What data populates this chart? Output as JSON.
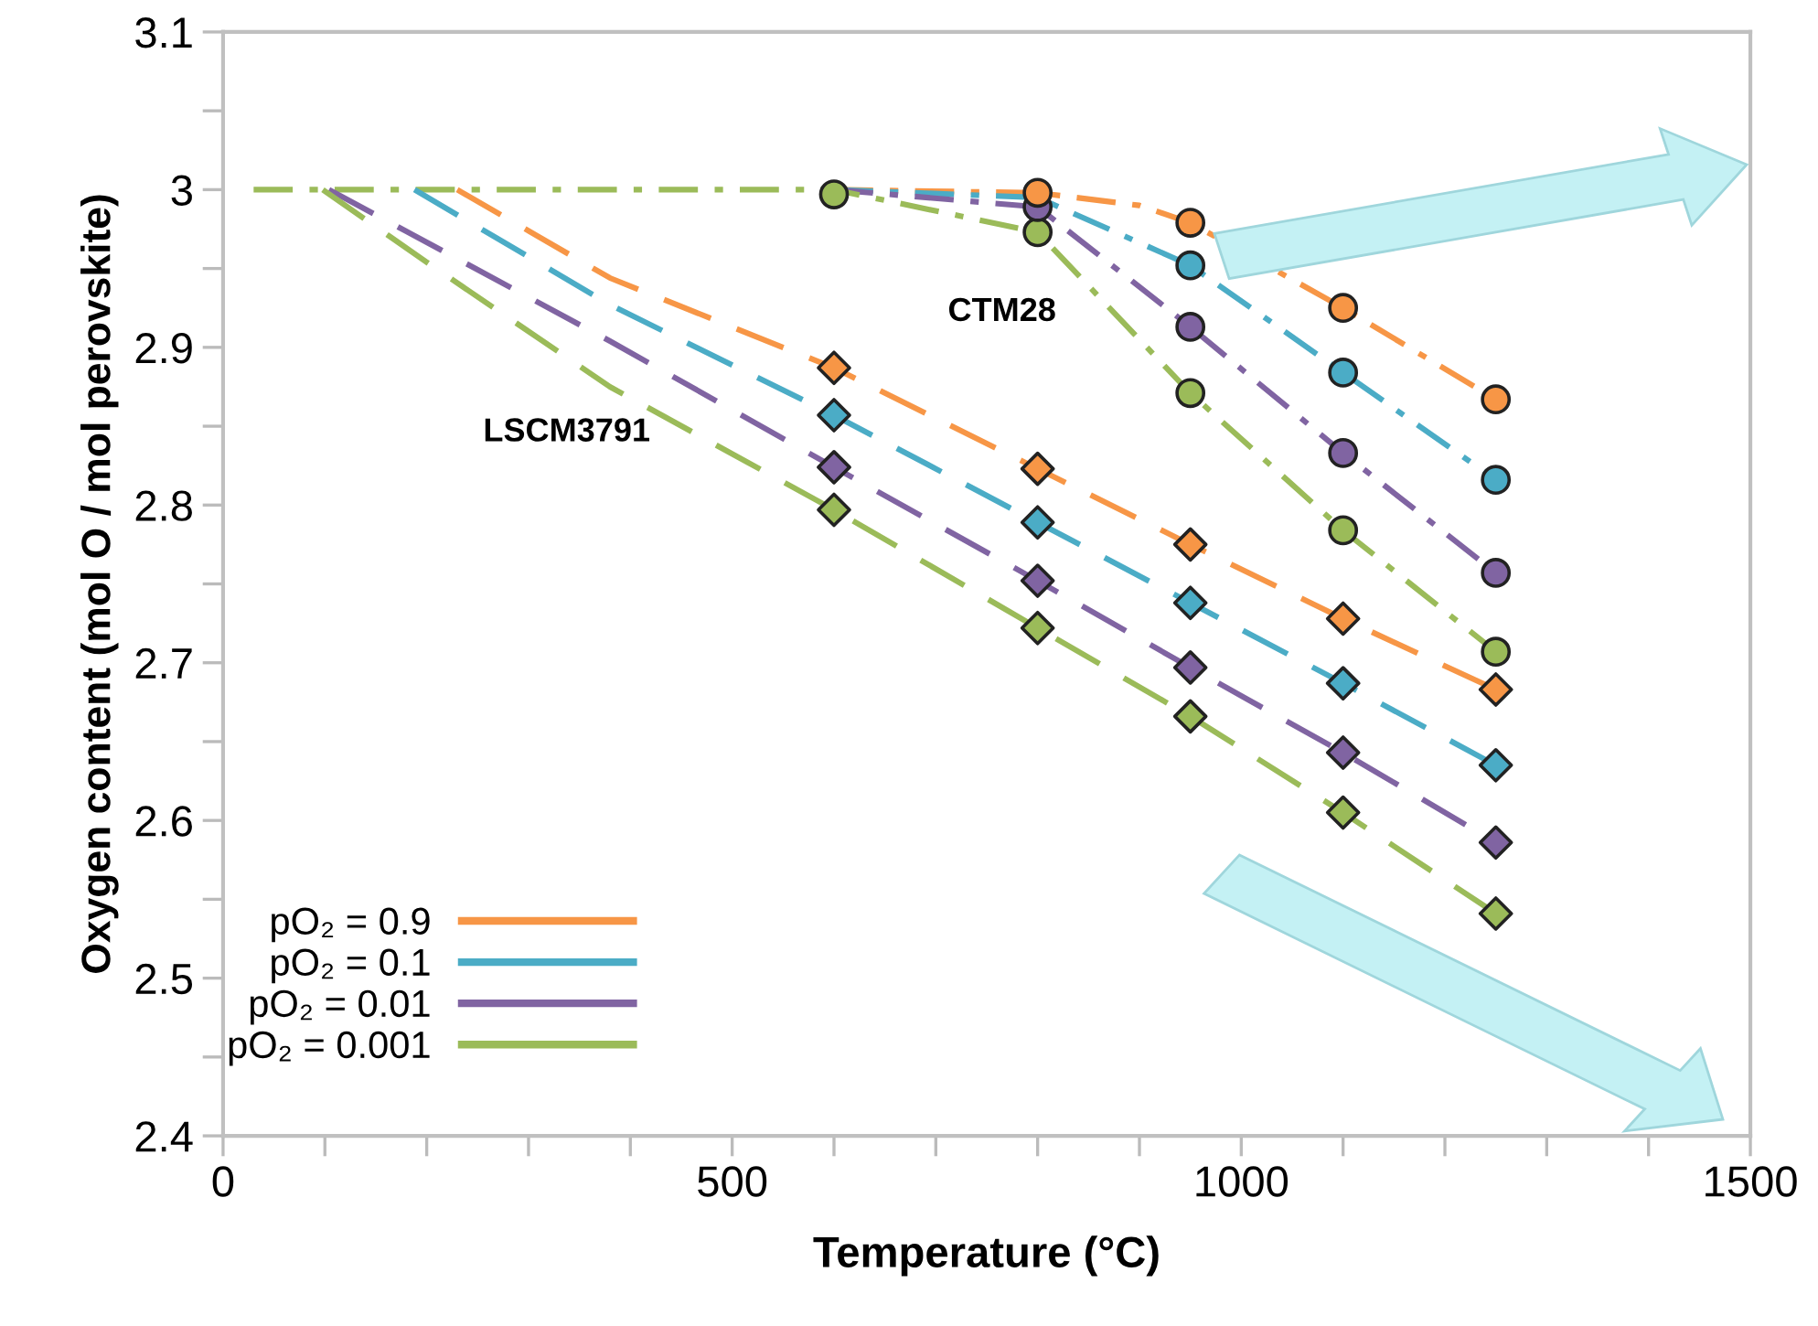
{
  "chart_data": {
    "type": "line",
    "xlabel": "Temperature (°C)",
    "ylabel": "Oxygen content (mol O / mol perovskite)",
    "xlim": [
      0,
      1500
    ],
    "ylim": [
      2.4,
      3.1
    ],
    "xticks": [
      0,
      {
        "value": 100,
        "label": null
      },
      {
        "value": 200,
        "label": null
      },
      {
        "value": 300,
        "label": null
      },
      {
        "value": 400,
        "label": null
      },
      500,
      {
        "value": 600,
        "label": null
      },
      {
        "value": 700,
        "label": null
      },
      {
        "value": 800,
        "label": null
      },
      {
        "value": 900,
        "label": null
      },
      1000,
      {
        "value": 1100,
        "label": null
      },
      {
        "value": 1200,
        "label": null
      },
      {
        "value": 1300,
        "label": null
      },
      {
        "value": 1400,
        "label": null
      },
      1500
    ],
    "yticks": [
      2.4,
      {
        "value": 2.45,
        "label": null
      },
      2.5,
      {
        "value": 2.55,
        "label": null
      },
      2.6,
      {
        "value": 2.65,
        "label": null
      },
      2.7,
      {
        "value": 2.75,
        "label": null
      },
      2.8,
      {
        "value": 2.85,
        "label": null
      },
      2.9,
      {
        "value": 2.95,
        "label": null
      },
      3,
      {
        "value": 3.05,
        "label": null
      },
      3.1
    ],
    "grid": false,
    "legend": "bottom left",
    "annotations": [
      "CTM28",
      "LSCM3791"
    ],
    "series": [
      {
        "line_style": "dashdot",
        "color": "#f79646",
        "x": [
          600,
          800,
          900,
          950,
          1100,
          1250
        ],
        "values": [
          3.0,
          2.998,
          2.99,
          2.979,
          2.925,
          2.867
        ]
      },
      {
        "line_style": "dashdot",
        "color": "#4bacc6",
        "x": [
          600,
          800,
          950,
          1100,
          1250
        ],
        "values": [
          3.0,
          2.995,
          2.952,
          2.884,
          2.816
        ]
      },
      {
        "line_style": "dashdot",
        "color": "#8064a2",
        "x": [
          600,
          800,
          950,
          1100,
          1250
        ],
        "values": [
          3.0,
          2.989,
          2.913,
          2.833,
          2.757
        ]
      },
      {
        "line_style": "dashdot",
        "color": "#9bbb59",
        "x": [
          30,
          600,
          800,
          950,
          1100,
          1250
        ],
        "values": [
          3.0,
          3.0,
          2.973,
          2.871,
          2.784,
          2.707
        ]
      },
      {
        "line_style": "dashed",
        "name": "pO₂ = 0.9",
        "color": "#f79646",
        "x": [
          230,
          380,
          600,
          800,
          950,
          1100,
          1250
        ],
        "values": [
          3.0,
          2.944,
          2.887,
          2.823,
          2.775,
          2.728,
          2.683
        ]
      },
      {
        "line_style": "dashed",
        "name": "pO₂ = 0.1",
        "color": "#4bacc6",
        "x": [
          188,
          380,
          600,
          800,
          950,
          1100,
          1250
        ],
        "values": [
          3.0,
          2.927,
          2.857,
          2.789,
          2.738,
          2.687,
          2.635
        ]
      },
      {
        "line_style": "dashed",
        "name": "pO₂ = 0.01",
        "color": "#8064a2",
        "x": [
          104,
          380,
          600,
          800,
          950,
          1100,
          1250
        ],
        "values": [
          3.0,
          2.904,
          2.824,
          2.752,
          2.697,
          2.643,
          2.586
        ]
      },
      {
        "line_style": "dashed",
        "name": "pO₂ = 0.001",
        "color": "#9bbb59",
        "x": [
          98,
          200,
          380,
          600,
          800,
          950,
          1100,
          1250
        ],
        "values": [
          3.0,
          2.954,
          2.875,
          2.797,
          2.722,
          2.666,
          2.605,
          2.541
        ]
      },
      {
        "type": "scatter",
        "marker": "circle",
        "color": "#f79646",
        "x": [
          800,
          950,
          1100,
          1250
        ],
        "values": [
          2.998,
          2.979,
          2.925,
          2.867
        ]
      },
      {
        "type": "scatter",
        "marker": "circle",
        "color": "#4bacc6",
        "x": [
          950,
          1100,
          1250
        ],
        "values": [
          2.952,
          2.884,
          2.816
        ]
      },
      {
        "type": "scatter",
        "marker": "circle",
        "color": "#8064a2",
        "x": [
          800,
          950,
          1100,
          1250
        ],
        "values": [
          2.989,
          2.913,
          2.833,
          2.757
        ]
      },
      {
        "type": "scatter",
        "marker": "circle",
        "color": "#9bbb59",
        "x": [
          600,
          800,
          950,
          1100,
          1250
        ],
        "values": [
          2.997,
          2.973,
          2.871,
          2.784,
          2.707
        ]
      },
      {
        "type": "scatter",
        "marker": "diamond",
        "color": "#f79646",
        "x": [
          600,
          800,
          950,
          1100,
          1250
        ],
        "values": [
          2.887,
          2.823,
          2.775,
          2.728,
          2.683
        ]
      },
      {
        "type": "scatter",
        "marker": "diamond",
        "color": "#4bacc6",
        "x": [
          600,
          800,
          950,
          1100,
          1250
        ],
        "values": [
          2.857,
          2.789,
          2.738,
          2.687,
          2.635
        ]
      },
      {
        "type": "scatter",
        "marker": "diamond",
        "color": "#8064a2",
        "x": [
          600,
          800,
          950,
          1100,
          1250
        ],
        "values": [
          2.824,
          2.752,
          2.697,
          2.643,
          2.586
        ]
      },
      {
        "type": "scatter",
        "marker": "diamond",
        "color": "#9bbb59",
        "x": [
          600,
          800,
          950,
          1100,
          1250
        ],
        "values": [
          2.797,
          2.722,
          2.666,
          2.605,
          2.541
        ]
      }
    ]
  }
}
